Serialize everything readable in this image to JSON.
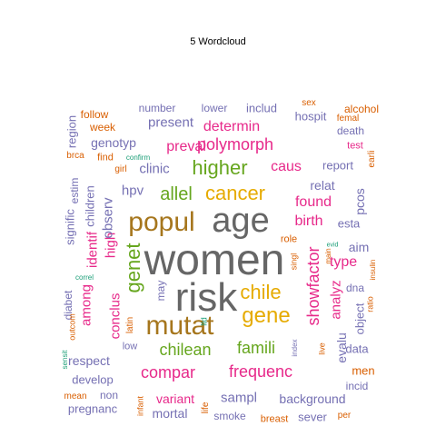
{
  "title": "5  Wordcloud",
  "colors": {
    "green": "#66A61E",
    "orange": "#D95F02",
    "purple": "#7570B3",
    "pink": "#E7298A",
    "teal": "#1B9E77",
    "gold": "#E6AB02",
    "brown": "#A6761D",
    "gray": "#666666"
  },
  "words": [
    {
      "text": "women",
      "color": "gray"
    },
    {
      "text": "risk",
      "color": "gray"
    },
    {
      "text": "age",
      "color": "gray"
    },
    {
      "text": "popul",
      "color": "brown"
    },
    {
      "text": "mutat",
      "color": "brown"
    },
    {
      "text": "cancer",
      "color": "gold"
    },
    {
      "text": "gene",
      "color": "gold"
    },
    {
      "text": "chile",
      "color": "gold"
    },
    {
      "text": "higher",
      "color": "green"
    },
    {
      "text": "allel",
      "color": "green"
    },
    {
      "text": "genet",
      "color": "green"
    },
    {
      "text": "chilean",
      "color": "green"
    },
    {
      "text": "famili",
      "color": "green"
    },
    {
      "text": "frequenc",
      "color": "pink"
    },
    {
      "text": "compar",
      "color": "pink"
    },
    {
      "text": "polymorph",
      "color": "pink"
    },
    {
      "text": "preval",
      "color": "pink"
    },
    {
      "text": "caus",
      "color": "pink"
    },
    {
      "text": "birth",
      "color": "pink"
    },
    {
      "text": "showfactor",
      "color": "pink"
    },
    {
      "text": "found",
      "color": "pink"
    },
    {
      "text": "determin",
      "color": "pink"
    },
    {
      "text": "hpv",
      "color": "purple"
    },
    {
      "text": "clinic",
      "color": "purple"
    },
    {
      "text": "present",
      "color": "purple"
    },
    {
      "text": "genotyp",
      "color": "purple"
    },
    {
      "text": "report",
      "color": "purple"
    },
    {
      "text": "relat",
      "color": "purple"
    },
    {
      "text": "esta",
      "color": "purple"
    },
    {
      "text": "pcos",
      "color": "purple"
    },
    {
      "text": "sampl",
      "color": "purple"
    },
    {
      "text": "background",
      "color": "purple"
    },
    {
      "text": "variant",
      "color": "pink"
    },
    {
      "text": "mortal",
      "color": "purple"
    },
    {
      "text": "sever",
      "color": "purple"
    },
    {
      "text": "pregnanc",
      "color": "purple"
    },
    {
      "text": "respect",
      "color": "purple"
    },
    {
      "text": "develop",
      "color": "purple"
    },
    {
      "text": "high",
      "color": "pink"
    },
    {
      "text": "observ",
      "color": "purple"
    },
    {
      "text": "identif",
      "color": "pink"
    },
    {
      "text": "children",
      "color": "purple"
    },
    {
      "text": "signific",
      "color": "purple"
    },
    {
      "text": "estim",
      "color": "purple"
    },
    {
      "text": "region",
      "color": "purple"
    },
    {
      "text": "among",
      "color": "pink"
    },
    {
      "text": "conclus",
      "color": "pink"
    },
    {
      "text": "diabet",
      "color": "purple"
    },
    {
      "text": "analyz",
      "color": "pink"
    },
    {
      "text": "type",
      "color": "pink"
    },
    {
      "text": "aim",
      "color": "purple"
    },
    {
      "text": "dna",
      "color": "purple"
    },
    {
      "text": "object",
      "color": "purple"
    },
    {
      "text": "evalu",
      "color": "purple"
    },
    {
      "text": "data",
      "color": "purple"
    },
    {
      "text": "men",
      "color": "orange"
    },
    {
      "text": "incid",
      "color": "purple"
    },
    {
      "text": "lower",
      "color": "purple"
    },
    {
      "text": "includ",
      "color": "purple"
    },
    {
      "text": "hospit",
      "color": "purple"
    },
    {
      "text": "number",
      "color": "purple"
    },
    {
      "text": "follow",
      "color": "orange"
    },
    {
      "text": "week",
      "color": "orange"
    },
    {
      "text": "alcohol",
      "color": "orange"
    },
    {
      "text": "death",
      "color": "purple"
    },
    {
      "text": "sex",
      "color": "orange"
    },
    {
      "text": "femal",
      "color": "orange"
    },
    {
      "text": "test",
      "color": "pink"
    },
    {
      "text": "earli",
      "color": "orange"
    },
    {
      "text": "find",
      "color": "orange"
    },
    {
      "text": "girl",
      "color": "orange"
    },
    {
      "text": "brca",
      "color": "orange"
    },
    {
      "text": "confirm",
      "color": "teal"
    },
    {
      "text": "may",
      "color": "purple"
    },
    {
      "text": "role",
      "color": "orange"
    },
    {
      "text": "low",
      "color": "purple"
    },
    {
      "text": "latin",
      "color": "orange"
    },
    {
      "text": "ltd",
      "color": "teal"
    },
    {
      "text": "non",
      "color": "purple"
    },
    {
      "text": "mean",
      "color": "orange"
    },
    {
      "text": "smoke",
      "color": "purple"
    },
    {
      "text": "breast",
      "color": "orange"
    },
    {
      "text": "per",
      "color": "orange"
    },
    {
      "text": "life",
      "color": "orange"
    },
    {
      "text": "infant",
      "color": "orange"
    },
    {
      "text": "sensit",
      "color": "teal"
    },
    {
      "text": "outcom",
      "color": "orange"
    },
    {
      "text": "correl",
      "color": "teal"
    },
    {
      "text": "evid",
      "color": "teal"
    },
    {
      "text": "main",
      "color": "orange"
    },
    {
      "text": "insulin",
      "color": "orange"
    },
    {
      "text": "ratio",
      "color": "orange"
    },
    {
      "text": "singl",
      "color": "orange"
    },
    {
      "text": "index",
      "color": "purple"
    },
    {
      "text": "live",
      "color": "orange"
    }
  ]
}
